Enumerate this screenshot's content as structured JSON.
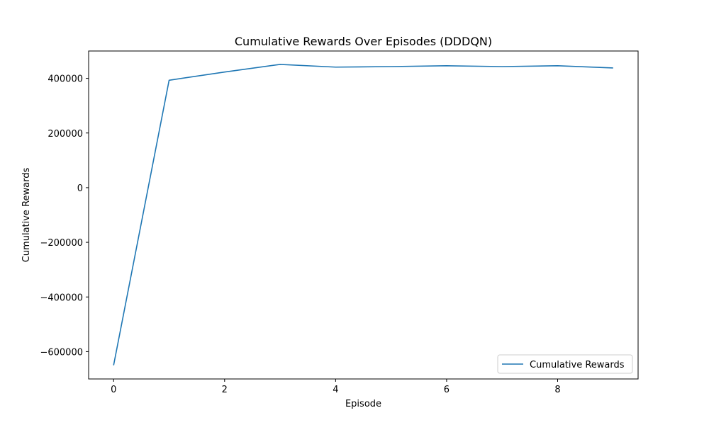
{
  "chart_data": {
    "type": "line",
    "title": "Cumulative Rewards Over Episodes (DDDQN)",
    "xlabel": "Episode",
    "ylabel": "Cumulative Rewards",
    "xlim": [
      -0.45,
      9.45
    ],
    "ylim": [
      -700000,
      500000
    ],
    "x_ticks": [
      0,
      2,
      4,
      6,
      8
    ],
    "y_ticks": [
      -600000,
      -400000,
      -200000,
      0,
      200000,
      400000
    ],
    "y_tick_labels": [
      "−600000",
      "−400000",
      "−200000",
      "0",
      "200000",
      "400000"
    ],
    "grid": false,
    "legend_position": "lower-right",
    "series": [
      {
        "name": "Cumulative Rewards",
        "color": "#1f77b4",
        "x": [
          0,
          1,
          2,
          3,
          4,
          5,
          6,
          7,
          8,
          9
        ],
        "y": [
          -650000,
          393000,
          423000,
          451000,
          441000,
          443000,
          446000,
          443000,
          446000,
          438000
        ]
      }
    ]
  }
}
